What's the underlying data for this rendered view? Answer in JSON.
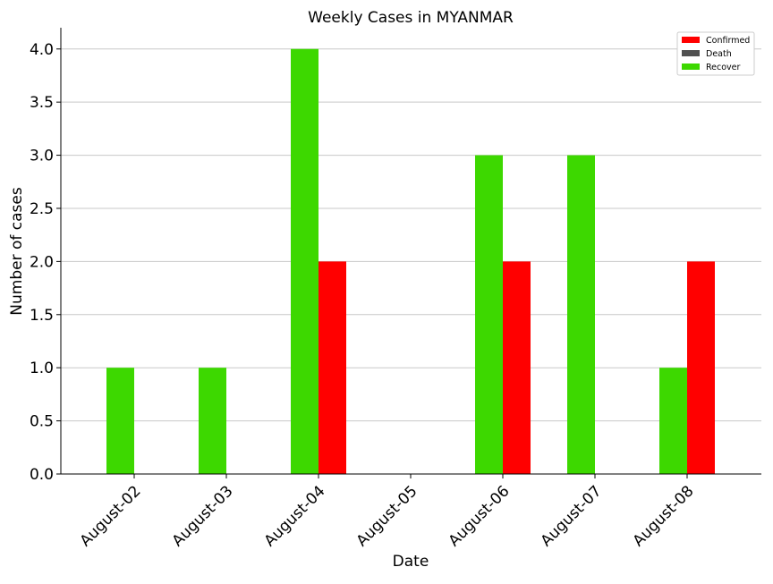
{
  "chart_data": {
    "type": "bar",
    "title": "Weekly Cases in MYANMAR",
    "xlabel": "Date",
    "ylabel": "Number of cases",
    "categories": [
      "August-02",
      "August-03",
      "August-04",
      "August-05",
      "August-06",
      "August-07",
      "August-08"
    ],
    "series": [
      {
        "name": "Recover",
        "color": "#3dd800",
        "values": [
          1,
          1,
          4,
          0,
          3,
          3,
          1
        ]
      },
      {
        "name": "Confirmed",
        "color": "#ff0000",
        "values": [
          0,
          0,
          2,
          0,
          2,
          0,
          2
        ]
      },
      {
        "name": "Death",
        "color": "#505050",
        "values": [
          0,
          0,
          0,
          0,
          0,
          0,
          0
        ]
      }
    ],
    "legend_order": [
      "Confirmed",
      "Death",
      "Recover"
    ],
    "legend_position": "top-right",
    "ylim": [
      0,
      4.2
    ],
    "yticks": [
      "0.0",
      "0.5",
      "1.0",
      "1.5",
      "2.0",
      "2.5",
      "3.0",
      "3.5",
      "4.0"
    ],
    "grid": "horizontal"
  }
}
